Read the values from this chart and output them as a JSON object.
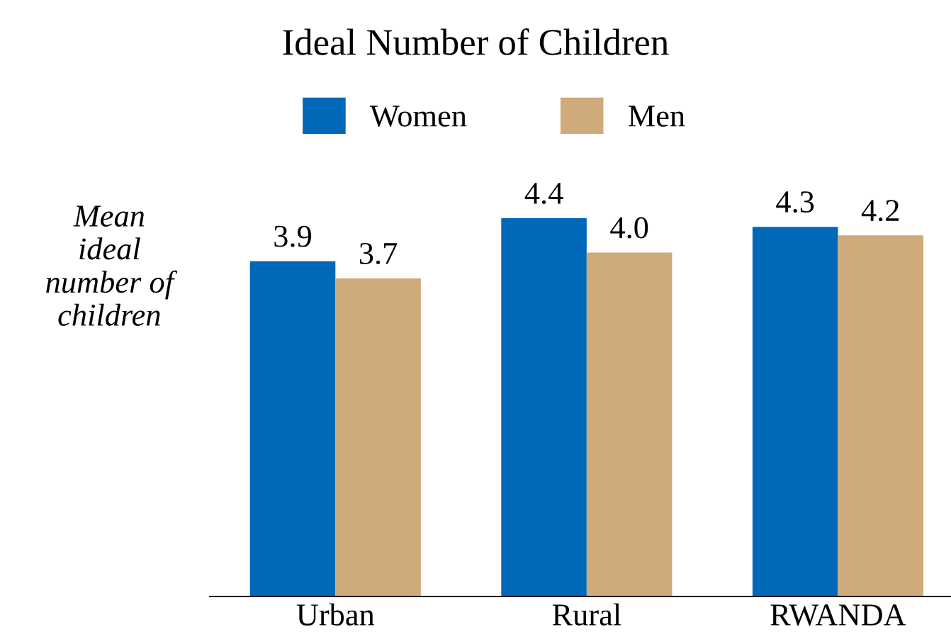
{
  "chart_data": {
    "type": "bar",
    "title": "Ideal Number of Children",
    "ylabel": "Mean\nideal\nnumber of\nchildren",
    "categories": [
      "Urban",
      "Rural",
      "RWANDA"
    ],
    "series": [
      {
        "name": "Women",
        "color": "#0068b8",
        "values": [
          3.9,
          4.4,
          4.3
        ],
        "value_labels": [
          "3.9",
          "4.4",
          "4.3"
        ]
      },
      {
        "name": "Men",
        "color": "#cfaa7a",
        "values": [
          3.7,
          4.0,
          4.2
        ],
        "value_labels": [
          "3.7",
          "4.0",
          "4.2"
        ]
      }
    ],
    "legend": "top",
    "grid": false
  }
}
